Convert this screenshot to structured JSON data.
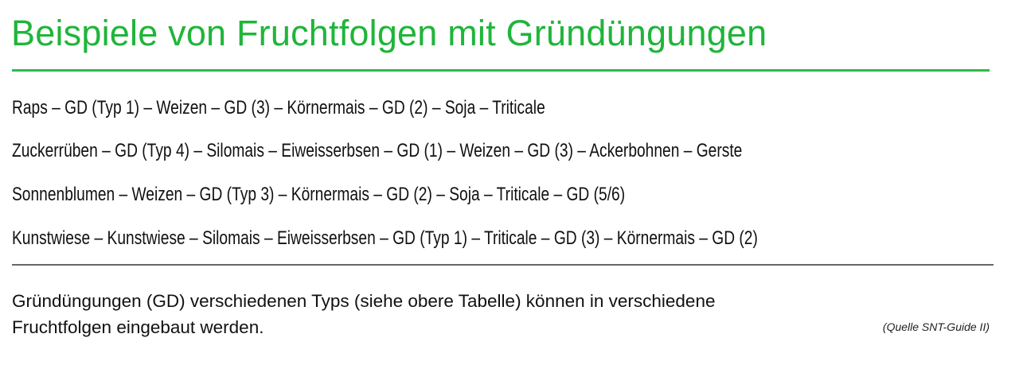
{
  "title": "Beispiele von Fruchtfolgen mit Gründüngungen",
  "rotations": [
    "Raps – GD (Typ 1) – Weizen – GD (3) – Körnermais – GD (2) – Soja – Triticale",
    "Zuckerrüben – GD (Typ 4) – Silomais – Eiweisserbsen – GD (1) – Weizen – GD (3) – Ackerbohnen – Gerste",
    "Sonnenblumen – Weizen – GD (Typ 3) – Körnermais – GD (2) – Soja – Triticale – GD (5/6)",
    "Kunstwiese – Kunstwiese – Silomais – Eiweisserbsen – GD (Typ 1) – Triticale – GD (3) – Körnermais – GD (2)"
  ],
  "note": {
    "line1": "Gründüngungen (GD) verschiedenen Typs (siehe obere Tabelle) können in verschiedene",
    "line2": "Fruchtfolgen eingebaut werden.",
    "source": "(Quelle SNT-Guide II)"
  },
  "colors": {
    "accent": "#1fb53a",
    "rule": "#666666"
  }
}
